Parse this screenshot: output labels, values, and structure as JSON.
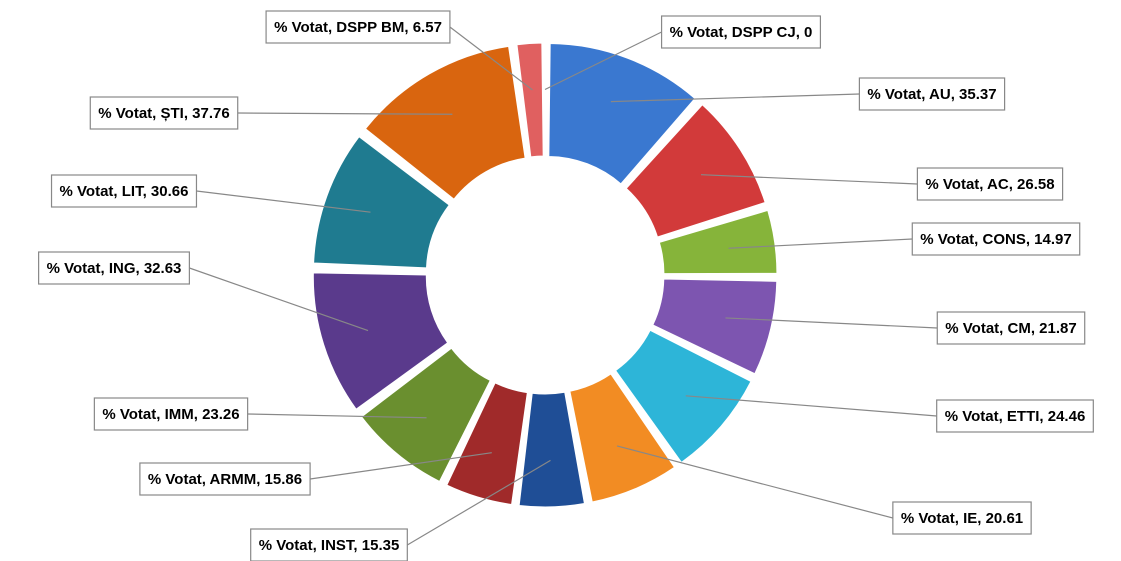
{
  "chart_data": {
    "type": "doughnut",
    "values": [
      35.37,
      26.58,
      14.97,
      21.87,
      24.46,
      20.61,
      15.35,
      15.86,
      23.26,
      32.63,
      30.66,
      37.76,
      6.57,
      0
    ],
    "value_labels": [
      "% Votat, AU, 35.37",
      "% Votat, AC, 26.58",
      "% Votat, CONS, 14.97",
      "% Votat, CM, 21.87",
      "% Votat, ETTI, 24.46",
      "% Votat, IE, 20.61",
      "% Votat, INST, 15.35",
      "% Votat, ARMM, 15.86",
      "% Votat, IMM, 23.26",
      "% Votat, ING, 32.63",
      "% Votat, LIT, 30.66",
      "% Votat, ȘTI, 37.76",
      "% Votat, DSPP BM, 6.57",
      "% Votat, DSPP CJ, 0"
    ],
    "colors": [
      "#3a78d0",
      "#d23a3a",
      "#86b43a",
      "#7d55b0",
      "#2db5d8",
      "#f28c23",
      "#1f4e96",
      "#a02a2a",
      "#6a8f2f",
      "#5a3a8c",
      "#1f7b90",
      "#d9650f",
      "#e06060",
      "#3a78d0"
    ]
  }
}
